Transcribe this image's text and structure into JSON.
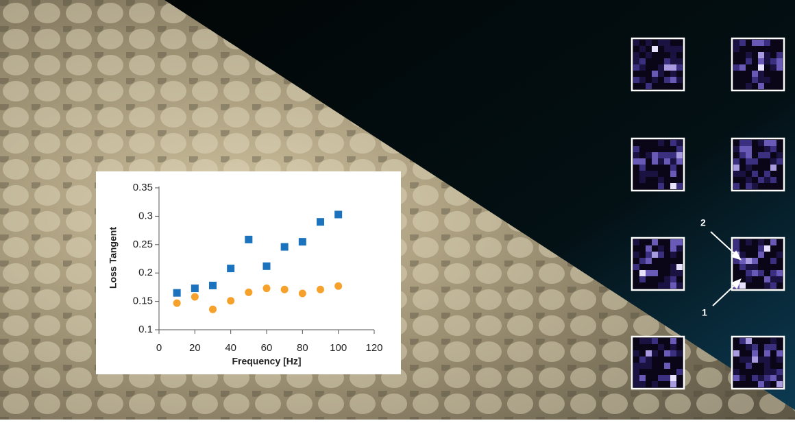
{
  "chart_data": {
    "type": "scatter",
    "x_label": "Frequency [Hz]",
    "y_label": "Loss Tangent",
    "x": [
      10,
      20,
      30,
      40,
      50,
      60,
      70,
      80,
      90,
      100
    ],
    "series": [
      {
        "color": "#1b72bd",
        "marker": "square",
        "values": [
          0.165,
          0.173,
          0.178,
          0.208,
          0.259,
          0.212,
          0.246,
          0.255,
          0.29,
          0.303
        ]
      },
      {
        "color": "#f6a12b",
        "marker": "circle",
        "values": [
          0.147,
          0.158,
          0.136,
          0.151,
          0.166,
          0.173,
          0.171,
          0.164,
          0.171,
          0.177
        ]
      }
    ],
    "xlim": [
      0,
      120
    ],
    "xticks": [
      0,
      20,
      40,
      60,
      80,
      100,
      120
    ],
    "ylim": [
      0.1,
      0.35
    ],
    "yticks": [
      0.1,
      0.15,
      0.2,
      0.25,
      0.3,
      0.35
    ],
    "annotations": [
      "2",
      "1"
    ]
  }
}
